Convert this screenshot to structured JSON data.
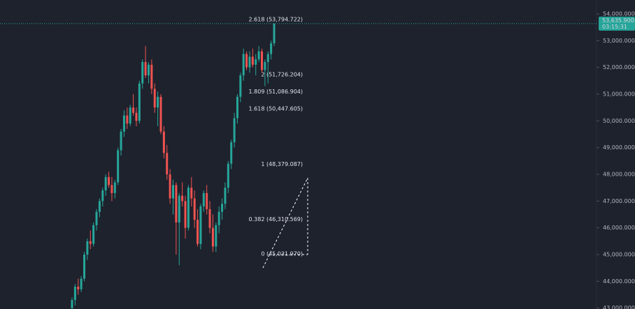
{
  "chart_data": {
    "type": "candlestick",
    "up_color": "#26a69a",
    "down_color": "#ef5350",
    "ylim": [
      42965,
      54520
    ],
    "yticks": [
      {
        "value": 43000,
        "label": "43,000.000"
      },
      {
        "value": 44000,
        "label": "44,000.000"
      },
      {
        "value": 45000,
        "label": "45,000.000"
      },
      {
        "value": 46000,
        "label": "46,000.000"
      },
      {
        "value": 47000,
        "label": "47,000.000"
      },
      {
        "value": 48000,
        "label": "48,000.000"
      },
      {
        "value": 49000,
        "label": "49,000.000"
      },
      {
        "value": 50000,
        "label": "50,000.000"
      },
      {
        "value": 51000,
        "label": "51,000.000"
      },
      {
        "value": 52000,
        "label": "52,000.000"
      },
      {
        "value": 53000,
        "label": "53,000.000"
      },
      {
        "value": 54000,
        "label": "54,000.000"
      }
    ],
    "last_price": {
      "value": 53635.9,
      "label": "53,635.900",
      "countdown": "03:15:31"
    },
    "fib_levels": [
      {
        "value": 53794.722,
        "label": "2.618 (53,794.722)"
      },
      {
        "value": 51726.204,
        "label": "2 (51,726.204)"
      },
      {
        "value": 51086.904,
        "label": "1.809 (51,086.904)"
      },
      {
        "value": 50447.605,
        "label": "1.618 (50,447.605)"
      },
      {
        "value": 48379.087,
        "label": "1 (48,379.087)"
      },
      {
        "value": 46310.569,
        "label": "0.382 (46,310.569)"
      },
      {
        "value": 45031.97,
        "label": "0 (45,031.970)"
      }
    ],
    "candles": [
      {
        "open": 43000,
        "high": 43400,
        "low": 42800,
        "close": 43300
      },
      {
        "open": 43300,
        "high": 43900,
        "low": 43100,
        "close": 43800
      },
      {
        "open": 43800,
        "high": 44100,
        "low": 43500,
        "close": 43700
      },
      {
        "open": 43700,
        "high": 44200,
        "low": 43600,
        "close": 44100
      },
      {
        "open": 44100,
        "high": 45100,
        "low": 44000,
        "close": 45000
      },
      {
        "open": 45000,
        "high": 45600,
        "low": 44800,
        "close": 45500
      },
      {
        "open": 45500,
        "high": 45900,
        "low": 45200,
        "close": 45400
      },
      {
        "open": 45400,
        "high": 46200,
        "low": 45300,
        "close": 46100
      },
      {
        "open": 46100,
        "high": 46700,
        "low": 45900,
        "close": 46600
      },
      {
        "open": 46600,
        "high": 47100,
        "low": 46400,
        "close": 47000
      },
      {
        "open": 47000,
        "high": 47500,
        "low": 46800,
        "close": 47400
      },
      {
        "open": 47400,
        "high": 48000,
        "low": 47200,
        "close": 47900
      },
      {
        "open": 47900,
        "high": 48100,
        "low": 47500,
        "close": 47600
      },
      {
        "open": 47600,
        "high": 47900,
        "low": 47000,
        "close": 47300
      },
      {
        "open": 47300,
        "high": 47800,
        "low": 47100,
        "close": 47700
      },
      {
        "open": 47700,
        "high": 49000,
        "low": 47600,
        "close": 48900
      },
      {
        "open": 48900,
        "high": 49700,
        "low": 48700,
        "close": 49600
      },
      {
        "open": 49600,
        "high": 50400,
        "low": 49400,
        "close": 50200
      },
      {
        "open": 50200,
        "high": 50500,
        "low": 49700,
        "close": 49900
      },
      {
        "open": 49900,
        "high": 50600,
        "low": 49800,
        "close": 50500
      },
      {
        "open": 50500,
        "high": 51000,
        "low": 50200,
        "close": 50300
      },
      {
        "open": 50300,
        "high": 50500,
        "low": 49800,
        "close": 50000
      },
      {
        "open": 50000,
        "high": 51500,
        "low": 49900,
        "close": 51400
      },
      {
        "open": 51400,
        "high": 52300,
        "low": 51200,
        "close": 52200
      },
      {
        "open": 52200,
        "high": 52800,
        "low": 51600,
        "close": 51700
      },
      {
        "open": 51700,
        "high": 52200,
        "low": 51400,
        "close": 52100
      },
      {
        "open": 52100,
        "high": 52300,
        "low": 51000,
        "close": 51200
      },
      {
        "open": 51200,
        "high": 51400,
        "low": 50300,
        "close": 50500
      },
      {
        "open": 50500,
        "high": 51100,
        "low": 49800,
        "close": 50900
      },
      {
        "open": 50900,
        "high": 51000,
        "low": 49500,
        "close": 49600
      },
      {
        "open": 49600,
        "high": 49800,
        "low": 48600,
        "close": 48800
      },
      {
        "open": 48800,
        "high": 49100,
        "low": 47800,
        "close": 48000
      },
      {
        "open": 48000,
        "high": 48200,
        "low": 46900,
        "close": 47100
      },
      {
        "open": 47100,
        "high": 47800,
        "low": 46500,
        "close": 47600
      },
      {
        "open": 47600,
        "high": 47700,
        "low": 45000,
        "close": 46200
      },
      {
        "open": 46200,
        "high": 47300,
        "low": 44600,
        "close": 47200
      },
      {
        "open": 47200,
        "high": 47700,
        "low": 46800,
        "close": 47000
      },
      {
        "open": 47000,
        "high": 47200,
        "low": 45600,
        "close": 46000
      },
      {
        "open": 46000,
        "high": 47600,
        "low": 45900,
        "close": 47500
      },
      {
        "open": 47500,
        "high": 47900,
        "low": 46800,
        "close": 47100
      },
      {
        "open": 47100,
        "high": 47400,
        "low": 46000,
        "close": 46300
      },
      {
        "open": 46300,
        "high": 46700,
        "low": 45300,
        "close": 45400
      },
      {
        "open": 45400,
        "high": 46900,
        "low": 45200,
        "close": 46800
      },
      {
        "open": 46800,
        "high": 47400,
        "low": 46600,
        "close": 47300
      },
      {
        "open": 47300,
        "high": 47600,
        "low": 46500,
        "close": 46700
      },
      {
        "open": 46700,
        "high": 47000,
        "low": 45800,
        "close": 46000
      },
      {
        "open": 46000,
        "high": 46500,
        "low": 45100,
        "close": 45300
      },
      {
        "open": 45300,
        "high": 46200,
        "low": 45100,
        "close": 46100
      },
      {
        "open": 46100,
        "high": 46800,
        "low": 45800,
        "close": 46600
      },
      {
        "open": 46600,
        "high": 47100,
        "low": 46300,
        "close": 46900
      },
      {
        "open": 46900,
        "high": 47700,
        "low": 46700,
        "close": 47500
      },
      {
        "open": 47500,
        "high": 48500,
        "low": 47300,
        "close": 48400
      },
      {
        "open": 48400,
        "high": 49300,
        "low": 48200,
        "close": 49200
      },
      {
        "open": 49200,
        "high": 50300,
        "low": 49000,
        "close": 50100
      },
      {
        "open": 50100,
        "high": 51000,
        "low": 49900,
        "close": 50900
      },
      {
        "open": 50900,
        "high": 51800,
        "low": 50700,
        "close": 51700
      },
      {
        "open": 51700,
        "high": 52700,
        "low": 51500,
        "close": 52500
      },
      {
        "open": 52500,
        "high": 52600,
        "low": 51900,
        "close": 52000
      },
      {
        "open": 52000,
        "high": 52600,
        "low": 51800,
        "close": 52400
      },
      {
        "open": 52400,
        "high": 52700,
        "low": 52000,
        "close": 52100
      },
      {
        "open": 52100,
        "high": 52500,
        "low": 51700,
        "close": 52300
      },
      {
        "open": 52300,
        "high": 52800,
        "low": 52200,
        "close": 52600
      },
      {
        "open": 52600,
        "high": 52700,
        "low": 51800,
        "close": 51900
      },
      {
        "open": 51900,
        "high": 52300,
        "low": 51300,
        "close": 52200
      },
      {
        "open": 52200,
        "high": 52600,
        "low": 51400,
        "close": 52500
      },
      {
        "open": 52500,
        "high": 53000,
        "low": 52300,
        "close": 52900
      },
      {
        "open": 52900,
        "high": 53650,
        "low": 52800,
        "close": 53635.9
      }
    ]
  }
}
